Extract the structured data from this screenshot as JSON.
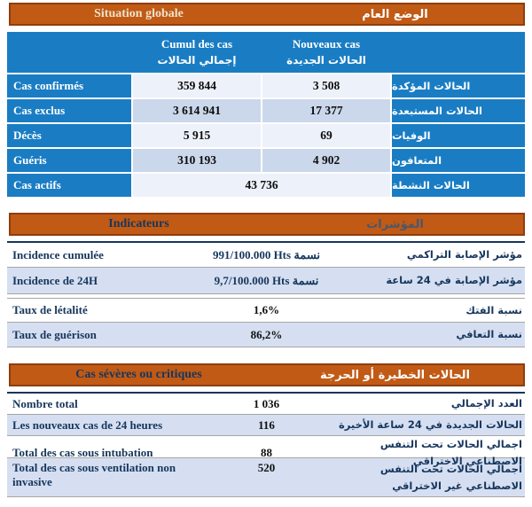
{
  "colors": {
    "header_orange": "#C05A15",
    "header_orange_border": "#8E3D0E",
    "table_blue": "#1A7DC4",
    "row_light": "#EDF1FA",
    "row_shaded": "#CBD7EB",
    "row_alt": "#D5DFF1",
    "navy_text": "#17365D",
    "title_cream": "#EFE3CC",
    "title_gray_blue": "#4A566E",
    "separator": "#A6A6A6"
  },
  "section1": {
    "title_fr": "Situation globale",
    "title_ar": "الوضع العام",
    "columns": [
      {
        "fr": "Cumul des cas",
        "ar": "إجمالي الحالات"
      },
      {
        "fr": "Nouveaux cas",
        "ar": "الحالات الجديدة"
      }
    ],
    "rows": [
      {
        "fr": "Cas confirmés",
        "cumul": "359 844",
        "nouveaux": "3 508",
        "ar": "الحالات المؤكدة"
      },
      {
        "fr": "Cas exclus",
        "cumul": "3 614 941",
        "nouveaux": "17 377",
        "ar": "الحالات المستبعدة"
      },
      {
        "fr": "Décès",
        "cumul": "5 915",
        "nouveaux": "69",
        "ar": "الوفيات"
      },
      {
        "fr": "Guéris",
        "cumul": "310 193",
        "nouveaux": "4 902",
        "ar": "المتعافون"
      },
      {
        "fr": "Cas actifs",
        "merged": "43 736",
        "ar": "الحالات النشطة"
      }
    ]
  },
  "section2": {
    "title_fr": "Indicateurs",
    "title_ar": "المؤشرات",
    "rows": [
      {
        "fr": "Incidence cumulée",
        "value": "991/100.000 Hts نسمة",
        "ar": "مؤشر الإصابة التراكمي"
      },
      {
        "fr": "Incidence de 24H",
        "value": "9,7/100.000 Hts نسمة",
        "ar": "مؤشر الإصابة في 24 ساعة"
      },
      {
        "fr": "Taux de létalité",
        "value": "1,6%",
        "ar": "نسبة الفتك"
      },
      {
        "fr": "Taux de guérison",
        "value": "86,2%",
        "ar": "نسبة التعافي"
      }
    ]
  },
  "section3": {
    "title_fr": "Cas sévères ou critiques",
    "title_ar": "الحالات الخطيرة أو الحرجة",
    "rows": [
      {
        "fr": "Nombre total",
        "value": "1 036",
        "ar": "العدد الإجمالي"
      },
      {
        "fr": "Les nouveaux cas de 24 heures",
        "value": "116",
        "ar": "الحالات الجديدة في 24 ساعة الأخيرة"
      },
      {
        "fr": "Total des cas sous intubation",
        "value": "88",
        "ar": "اجمالي الحالات تحت التنفس الاصطناعي الاختراقي"
      },
      {
        "fr": "Total des cas sous ventilation non invasive",
        "value": "520",
        "ar": "اجمالي الحالات تحت التنفس الاصطناعي غير الاختراقي"
      }
    ]
  }
}
